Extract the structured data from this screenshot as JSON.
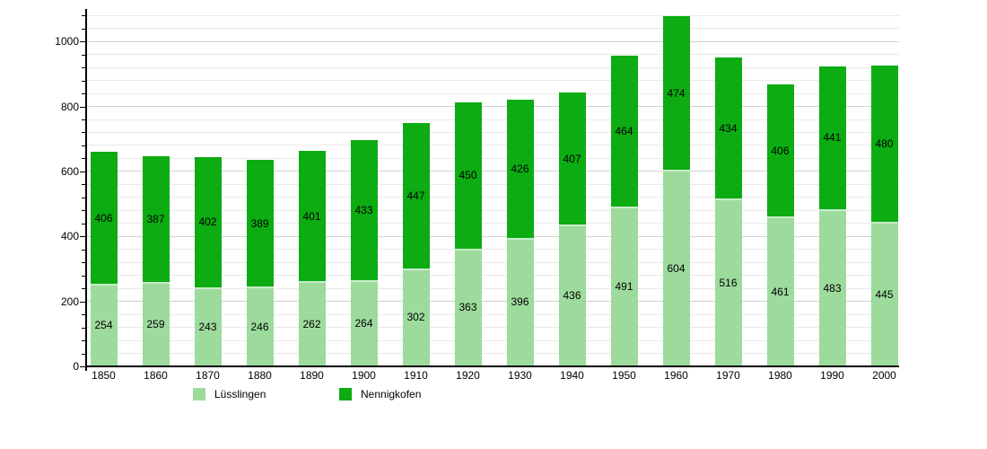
{
  "chart_data": {
    "type": "bar",
    "stacked": true,
    "title": "",
    "xlabel": "",
    "ylabel": "",
    "categories": [
      "1850",
      "1860",
      "1870",
      "1880",
      "1890",
      "1900",
      "1910",
      "1920",
      "1930",
      "1940",
      "1950",
      "1960",
      "1970",
      "1980",
      "1990",
      "2000"
    ],
    "series": [
      {
        "name": "Lüsslingen",
        "slug": "lusslingen",
        "color": "#9ddb9d",
        "values": [
          254,
          259,
          243,
          246,
          262,
          264,
          302,
          363,
          396,
          436,
          491,
          604,
          516,
          461,
          483,
          445
        ]
      },
      {
        "name": "Nennigkofen",
        "slug": "nennigkofen",
        "color": "#0cac12",
        "values": [
          406,
          387,
          402,
          389,
          401,
          433,
          447,
          450,
          426,
          407,
          464,
          474,
          434,
          406,
          441,
          480
        ]
      }
    ],
    "totals": [
      660,
      646,
      645,
      635,
      663,
      697,
      749,
      813,
      822,
      843,
      955,
      1078,
      950,
      867,
      924,
      925
    ],
    "ylim": [
      0,
      1100
    ],
    "y_major_ticks": [
      0,
      200,
      400,
      600,
      800,
      1000
    ],
    "y_minor_step": 40,
    "grid": true,
    "value_labels": true,
    "legend_position": "bottom"
  }
}
